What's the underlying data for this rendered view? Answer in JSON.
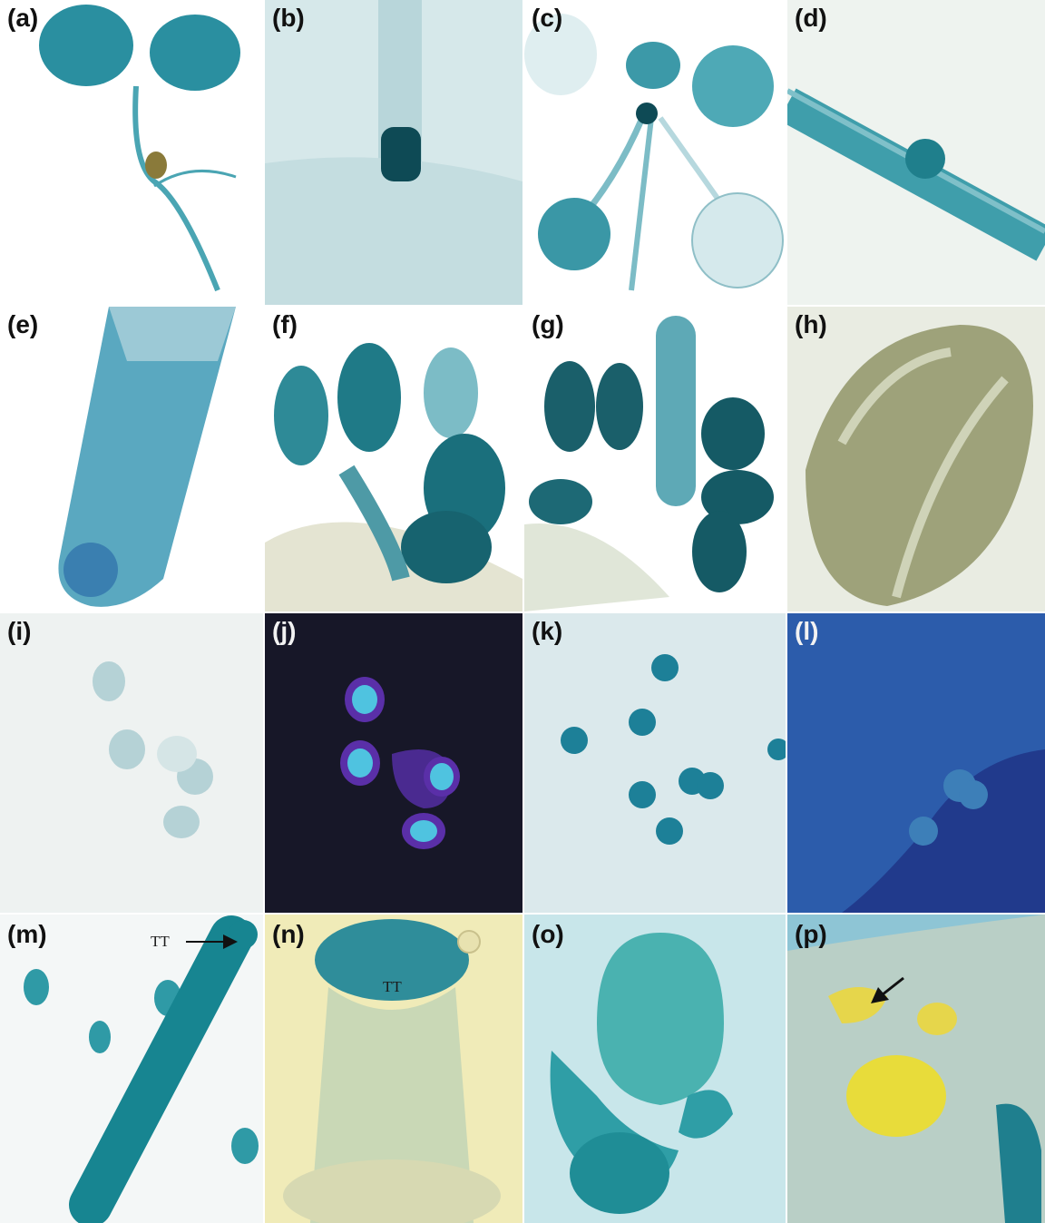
{
  "figure": {
    "panels": [
      {
        "label": "(a)",
        "subject": "seedling with stained cotyledons and root"
      },
      {
        "label": "(b)",
        "subject": "shoot apex close-up"
      },
      {
        "label": "(c)",
        "subject": "rosette seedling with true leaves"
      },
      {
        "label": "(d)",
        "subject": "lateral root primordium"
      },
      {
        "label": "(e)",
        "subject": "root tip"
      },
      {
        "label": "(f)",
        "subject": "flower with anthers"
      },
      {
        "label": "(g)",
        "subject": "flower with anthers and pistil"
      },
      {
        "label": "(h)",
        "subject": "anther close-up"
      },
      {
        "label": "(i)",
        "subject": "pollen grains, bright field"
      },
      {
        "label": "(j)",
        "subject": "pollen grains, fluorescence"
      },
      {
        "label": "(k)",
        "subject": "pollen grains on tissue"
      },
      {
        "label": "(l)",
        "subject": "tissue, fluorescence"
      },
      {
        "label": "(m)",
        "subject": "pistil with ovules"
      },
      {
        "label": "(n)",
        "subject": "stigma close-up"
      },
      {
        "label": "(o)",
        "subject": "ovule"
      },
      {
        "label": "(p)",
        "subject": "ovule with yellow cells"
      }
    ],
    "annotations": {
      "m_arrow_text": "TT",
      "n_text": "TT"
    },
    "colors": {
      "stain": "#2a8fa0",
      "dark_stain": "#0e5a66",
      "fluor_bg": "#1a1a2e",
      "yellow": "#e8d84a"
    }
  }
}
